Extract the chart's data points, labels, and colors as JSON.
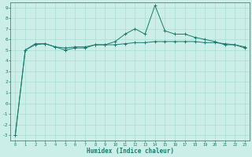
{
  "x": [
    0,
    1,
    2,
    3,
    4,
    5,
    6,
    7,
    8,
    9,
    10,
    11,
    12,
    13,
    14,
    15,
    16,
    17,
    18,
    19,
    20,
    21,
    22,
    23
  ],
  "y_line1": [
    -3.0,
    5.0,
    5.5,
    5.6,
    5.3,
    5.0,
    5.2,
    5.2,
    5.5,
    5.5,
    5.8,
    6.5,
    7.0,
    6.5,
    9.2,
    6.8,
    6.5,
    6.5,
    6.2,
    6.0,
    5.8,
    5.5,
    5.5,
    5.2
  ],
  "y_line2": [
    -3.0,
    5.0,
    5.6,
    5.6,
    5.3,
    5.2,
    5.3,
    5.3,
    5.5,
    5.5,
    5.5,
    5.6,
    5.7,
    5.7,
    5.8,
    5.8,
    5.8,
    5.8,
    5.8,
    5.7,
    5.7,
    5.6,
    5.5,
    5.3
  ],
  "line_color": "#1a7a6e",
  "bg_color": "#cceee8",
  "grid_color": "#aaddd6",
  "xlabel": "Humidex (Indice chaleur)",
  "xlim": [
    -0.5,
    23.5
  ],
  "ylim": [
    -3.5,
    9.5
  ],
  "yticks": [
    -3,
    -2,
    -1,
    0,
    1,
    2,
    3,
    4,
    5,
    6,
    7,
    8,
    9
  ],
  "xticks": [
    0,
    1,
    2,
    3,
    4,
    5,
    6,
    7,
    8,
    9,
    10,
    11,
    12,
    13,
    14,
    15,
    16,
    17,
    18,
    19,
    20,
    21,
    22,
    23
  ]
}
